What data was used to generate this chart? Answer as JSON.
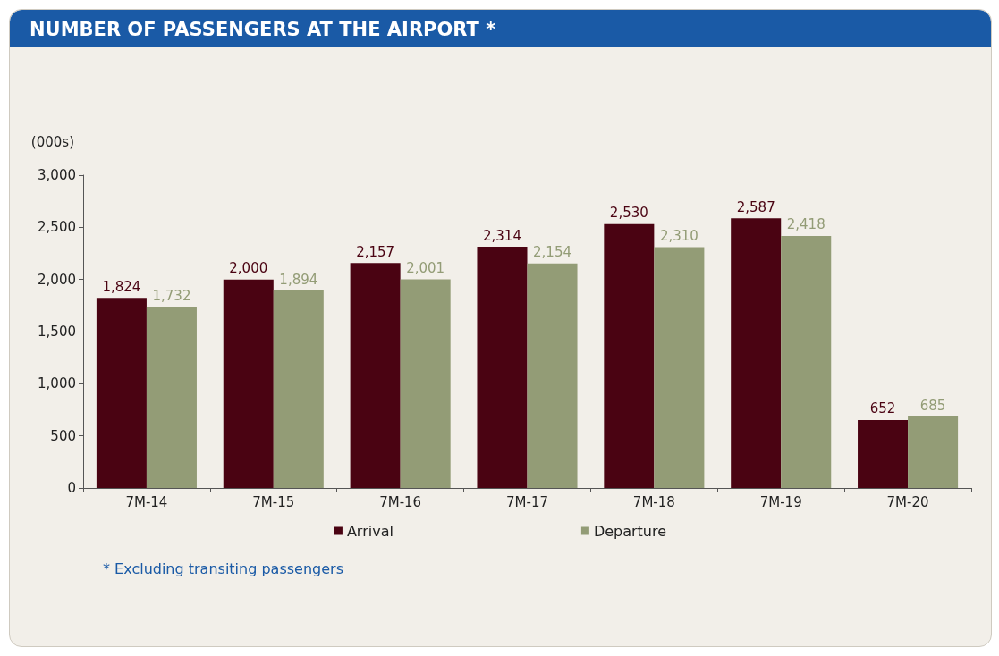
{
  "chart_data": {
    "type": "bar",
    "title": "NUMBER OF PASSENGERS AT THE AIRPORT *",
    "ylabel": "(000s)",
    "categories": [
      "7M-14",
      "7M-15",
      "7M-16",
      "7M-17",
      "7M-18",
      "7M-19",
      "7M-20"
    ],
    "series": [
      {
        "name": "Arrival",
        "color": "#4a0312",
        "values": [
          1824,
          2000,
          2157,
          2314,
          2530,
          2587,
          652
        ],
        "value_labels": [
          "1,824",
          "2,000",
          "2,157",
          "2,314",
          "2,530",
          "2,587",
          "652"
        ]
      },
      {
        "name": "Departure",
        "color": "#939c76",
        "values": [
          1732,
          1894,
          2001,
          2154,
          2310,
          2418,
          685
        ],
        "value_labels": [
          "1,732",
          "1,894",
          "2,001",
          "2,154",
          "2,310",
          "2,418",
          "685"
        ]
      }
    ],
    "ylim": [
      0,
      3000
    ],
    "yticks": [
      0,
      500,
      {
        "value": 1000,
        "label": "1,000"
      },
      {
        "value": 1500,
        "label": "1,500"
      },
      {
        "value": 2000,
        "label": "2,000"
      },
      {
        "value": 2500,
        "label": "2,500"
      },
      {
        "value": 3000,
        "label": "3,000"
      }
    ],
    "grid": false,
    "legend": "bottom",
    "annotations": [
      "* Excluding transiting passengers"
    ]
  }
}
